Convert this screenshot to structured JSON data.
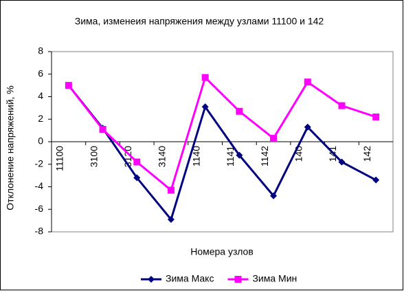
{
  "chart_data": {
    "type": "line",
    "title": "Зима, изменеия напряжения между узлами 11100 и 142",
    "x_label": "Номера узлов",
    "y_label": "Отклонение напряжений, %",
    "categories": [
      "11100",
      "3100",
      "3120",
      "3140",
      "1140",
      "1141",
      "1142",
      "140",
      "141",
      "142"
    ],
    "series": [
      {
        "name": "Зима Макс",
        "color": "#000080",
        "marker": "diamond",
        "values": [
          5.0,
          1.2,
          -3.2,
          -6.9,
          3.1,
          -1.2,
          -4.8,
          1.3,
          -1.8,
          -3.4
        ]
      },
      {
        "name": "Зима Мин",
        "color": "#ff00ff",
        "marker": "square",
        "values": [
          5.0,
          1.1,
          -1.8,
          -4.3,
          5.7,
          2.7,
          0.3,
          5.3,
          3.2,
          2.2
        ]
      }
    ],
    "ylim": [
      -8,
      8
    ],
    "yticks": [
      -8,
      -6,
      -4,
      -2,
      0,
      2,
      4,
      6,
      8
    ],
    "grid": false,
    "legend": "bottom"
  }
}
